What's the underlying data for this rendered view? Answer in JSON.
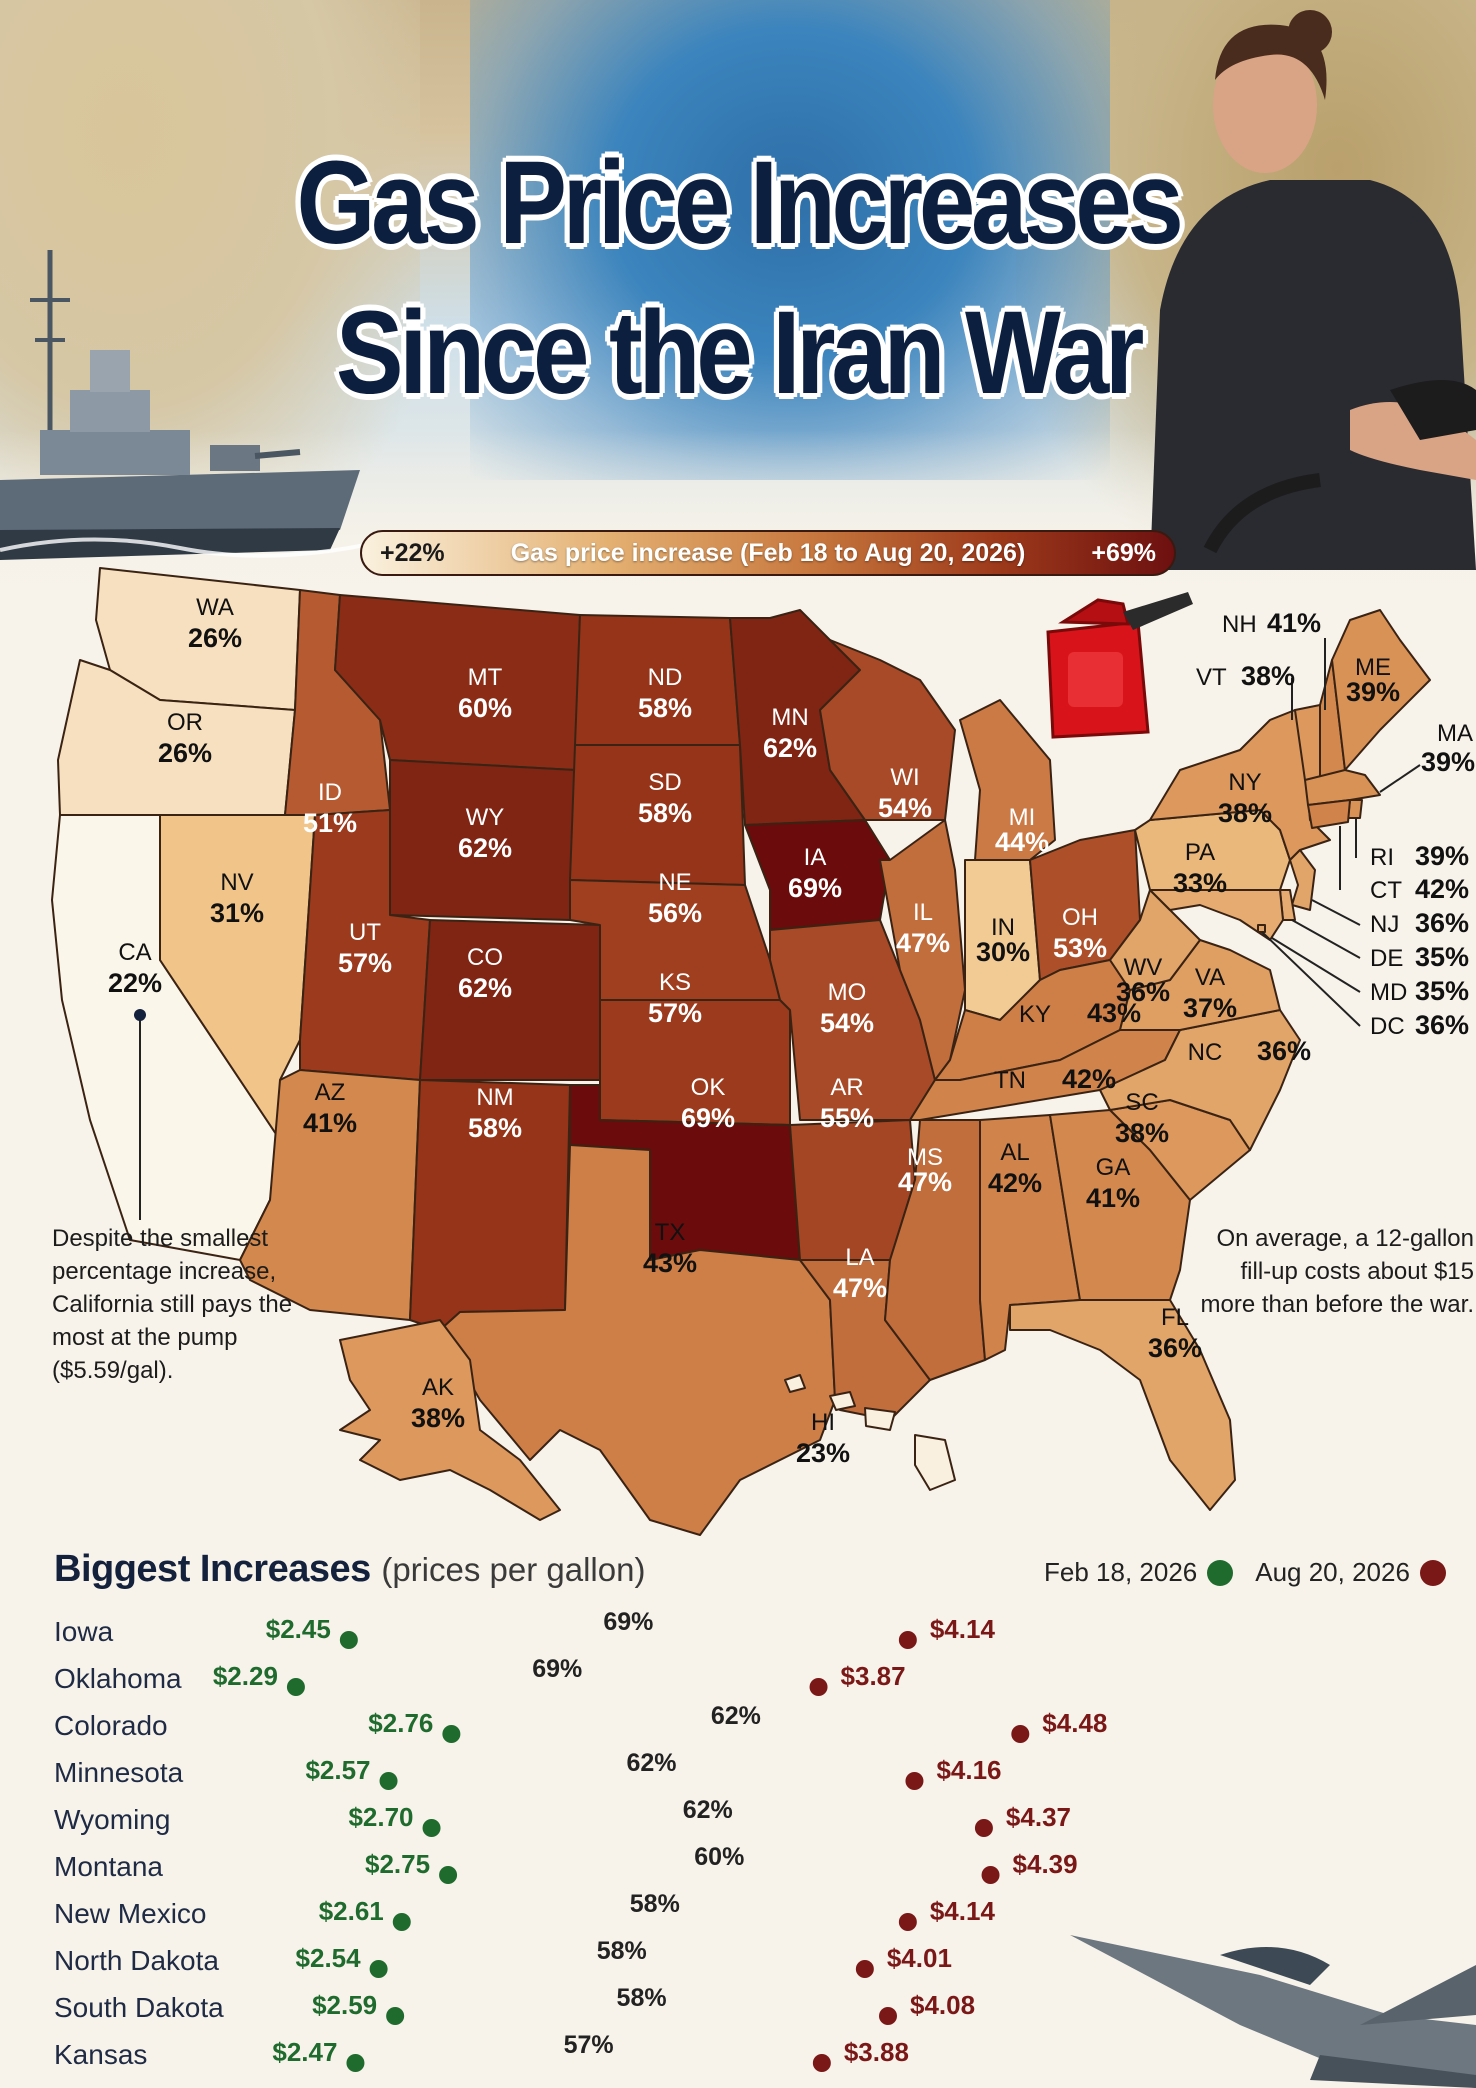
{
  "title_line1": "Gas Price Increases",
  "title_line2": "Since the Iran War",
  "legend": {
    "low": "+22%",
    "label": "Gas price increase (Feb 18 to Aug 20, 2026)",
    "high": "+69%"
  },
  "notes": {
    "california": "Despite the smallest percentage increase, California still pays the most at the pump ($5.59/gal).",
    "fillup": "On average, a 12-gallon fill-up costs about $15 more than before the war."
  },
  "colors": {
    "low": "#fbf6ea",
    "high": "#6b0b0b",
    "feb_dot": "#1f6b2e",
    "aug_dot": "#7a1818"
  },
  "icons": [
    "warship-image",
    "woman-pumping-gas-image",
    "gas-can-icon",
    "fighter-jet-image"
  ],
  "chart_data": [
    {
      "type": "choropleth",
      "title": "Gas price increase (Feb 18 to Aug 20, 2026)",
      "range": [
        22,
        69
      ],
      "unit": "%",
      "states": [
        {
          "abbr": "WA",
          "value": 26
        },
        {
          "abbr": "OR",
          "value": 26
        },
        {
          "abbr": "CA",
          "value": 22
        },
        {
          "abbr": "NV",
          "value": 31
        },
        {
          "abbr": "ID",
          "value": 51
        },
        {
          "abbr": "MT",
          "value": 60
        },
        {
          "abbr": "WY",
          "value": 62
        },
        {
          "abbr": "UT",
          "value": 57
        },
        {
          "abbr": "CO",
          "value": 62
        },
        {
          "abbr": "AZ",
          "value": 41
        },
        {
          "abbr": "NM",
          "value": 58
        },
        {
          "abbr": "ND",
          "value": 58
        },
        {
          "abbr": "SD",
          "value": 58
        },
        {
          "abbr": "NE",
          "value": 56
        },
        {
          "abbr": "KS",
          "value": 57
        },
        {
          "abbr": "OK",
          "value": 69
        },
        {
          "abbr": "TX",
          "value": 43
        },
        {
          "abbr": "MN",
          "value": 62
        },
        {
          "abbr": "IA",
          "value": 69
        },
        {
          "abbr": "MO",
          "value": 54
        },
        {
          "abbr": "AR",
          "value": 55
        },
        {
          "abbr": "LA",
          "value": 47
        },
        {
          "abbr": "WI",
          "value": 54
        },
        {
          "abbr": "IL",
          "value": 47
        },
        {
          "abbr": "MI",
          "value": 44
        },
        {
          "abbr": "IN",
          "value": 30
        },
        {
          "abbr": "OH",
          "value": 53
        },
        {
          "abbr": "KY",
          "value": 43
        },
        {
          "abbr": "TN",
          "value": 42
        },
        {
          "abbr": "MS",
          "value": 47
        },
        {
          "abbr": "AL",
          "value": 42
        },
        {
          "abbr": "GA",
          "value": 41
        },
        {
          "abbr": "FL",
          "value": 36
        },
        {
          "abbr": "SC",
          "value": 38
        },
        {
          "abbr": "NC",
          "value": 36
        },
        {
          "abbr": "VA",
          "value": 37
        },
        {
          "abbr": "WV",
          "value": 36
        },
        {
          "abbr": "PA",
          "value": 33
        },
        {
          "abbr": "NY",
          "value": 38
        },
        {
          "abbr": "VT",
          "value": 38
        },
        {
          "abbr": "NH",
          "value": 41
        },
        {
          "abbr": "ME",
          "value": 39
        },
        {
          "abbr": "MA",
          "value": 39
        },
        {
          "abbr": "RI",
          "value": 39
        },
        {
          "abbr": "CT",
          "value": 42
        },
        {
          "abbr": "NJ",
          "value": 36
        },
        {
          "abbr": "DE",
          "value": 35
        },
        {
          "abbr": "MD",
          "value": 35
        },
        {
          "abbr": "DC",
          "value": 36
        },
        {
          "abbr": "AK",
          "value": 38
        },
        {
          "abbr": "HI",
          "value": 23
        }
      ]
    },
    {
      "type": "dumbbell",
      "title": "Biggest Increases",
      "subtitle": "(prices per gallon)",
      "series": [
        {
          "name": "Feb 18, 2026"
        },
        {
          "name": "Aug 20, 2026"
        }
      ],
      "unit": "$/gal",
      "rows": [
        {
          "state": "Iowa",
          "feb": "$2.45",
          "aug": "$4.14",
          "pct": "69%",
          "a": 2.45,
          "b": 4.14
        },
        {
          "state": "Oklahoma",
          "feb": "$2.29",
          "aug": "$3.87",
          "pct": "69%",
          "a": 2.29,
          "b": 3.87
        },
        {
          "state": "Colorado",
          "feb": "$2.76",
          "aug": "$4.48",
          "pct": "62%",
          "a": 2.76,
          "b": 4.48
        },
        {
          "state": "Minnesota",
          "feb": "$2.57",
          "aug": "$4.16",
          "pct": "62%",
          "a": 2.57,
          "b": 4.16
        },
        {
          "state": "Wyoming",
          "feb": "$2.70",
          "aug": "$4.37",
          "pct": "62%",
          "a": 2.7,
          "b": 4.37
        },
        {
          "state": "Montana",
          "feb": "$2.75",
          "aug": "$4.39",
          "pct": "60%",
          "a": 2.75,
          "b": 4.39
        },
        {
          "state": "New Mexico",
          "feb": "$2.61",
          "aug": "$4.14",
          "pct": "58%",
          "a": 2.61,
          "b": 4.14
        },
        {
          "state": "North Dakota",
          "feb": "$2.54",
          "aug": "$4.01",
          "pct": "58%",
          "a": 2.54,
          "b": 4.01
        },
        {
          "state": "South Dakota",
          "feb": "$2.59",
          "aug": "$4.08",
          "pct": "58%",
          "a": 2.59,
          "b": 4.08
        },
        {
          "state": "Kansas",
          "feb": "$2.47",
          "aug": "$3.88",
          "pct": "57%",
          "a": 2.47,
          "b": 3.88
        }
      ]
    }
  ]
}
